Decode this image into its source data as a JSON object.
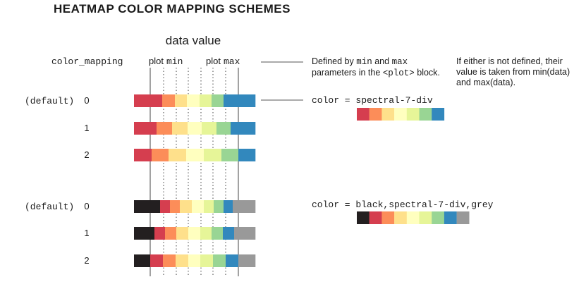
{
  "title": "HEATMAP COLOR MAPPING SCHEMES",
  "axis_label": "data value",
  "column_header": "color_mapping",
  "plot_min_label": {
    "word": "plot",
    "code": "min"
  },
  "plot_max_label": {
    "word": "plot",
    "code": "max"
  },
  "note_minmax": {
    "t1": "Defined by ",
    "c1": "min",
    "t2": " and ",
    "c2": "max",
    "t3": " parameters in the ",
    "c3": "<plot>",
    "t4": " block."
  },
  "note_undefined": "If either is not defined, their value is taken from min(data) and max(data).",
  "groups": [
    {
      "color_label": "color = spectral-7-div",
      "rows": [
        {
          "prefix": "(default)",
          "mode": "0",
          "segment_colors": [
            "#d53e4f",
            "#d53e4f",
            "#fc8d59",
            "#fee08b",
            "#ffffbf",
            "#e6f598",
            "#99d594",
            "#3288bd",
            "#3288bd"
          ]
        },
        {
          "prefix": "",
          "mode": "1",
          "segment_colors": [
            "#d53e4f",
            "#fc8d59",
            "#fee08b",
            "#ffffbf",
            "#e6f598",
            "#99d594",
            "#3288bd"
          ]
        },
        {
          "prefix": "",
          "mode": "2",
          "segment_colors": [
            "#d53e4f",
            "#fc8d59",
            "#fee08b",
            "#ffffbf",
            "#e6f598",
            "#99d594",
            "#3288bd"
          ]
        }
      ],
      "palette": [
        "#d53e4f",
        "#fc8d59",
        "#fee08b",
        "#ffffbf",
        "#e6f598",
        "#99d594",
        "#3288bd"
      ]
    },
    {
      "color_label": "color = black,spectral-7-div,grey",
      "rows": [
        {
          "prefix": "(default)",
          "mode": "0",
          "segment_colors": [
            "#231f20",
            "#d53e4f",
            "#fc8d59",
            "#fee08b",
            "#ffffbf",
            "#e6f598",
            "#99d594",
            "#3288bd",
            "#999999"
          ]
        },
        {
          "prefix": "",
          "mode": "1",
          "segment_colors": [
            "#231f20",
            "#d53e4f",
            "#fc8d59",
            "#fee08b",
            "#ffffbf",
            "#e6f598",
            "#99d594",
            "#3288bd",
            "#999999"
          ]
        },
        {
          "prefix": "",
          "mode": "2",
          "segment_colors": [
            "#231f20",
            "#d53e4f",
            "#fc8d59",
            "#fee08b",
            "#ffffbf",
            "#e6f598",
            "#99d594",
            "#3288bd",
            "#999999"
          ]
        }
      ],
      "palette": [
        "#231f20",
        "#d53e4f",
        "#fc8d59",
        "#fee08b",
        "#ffffbf",
        "#e6f598",
        "#99d594",
        "#3288bd",
        "#999999"
      ]
    }
  ]
}
